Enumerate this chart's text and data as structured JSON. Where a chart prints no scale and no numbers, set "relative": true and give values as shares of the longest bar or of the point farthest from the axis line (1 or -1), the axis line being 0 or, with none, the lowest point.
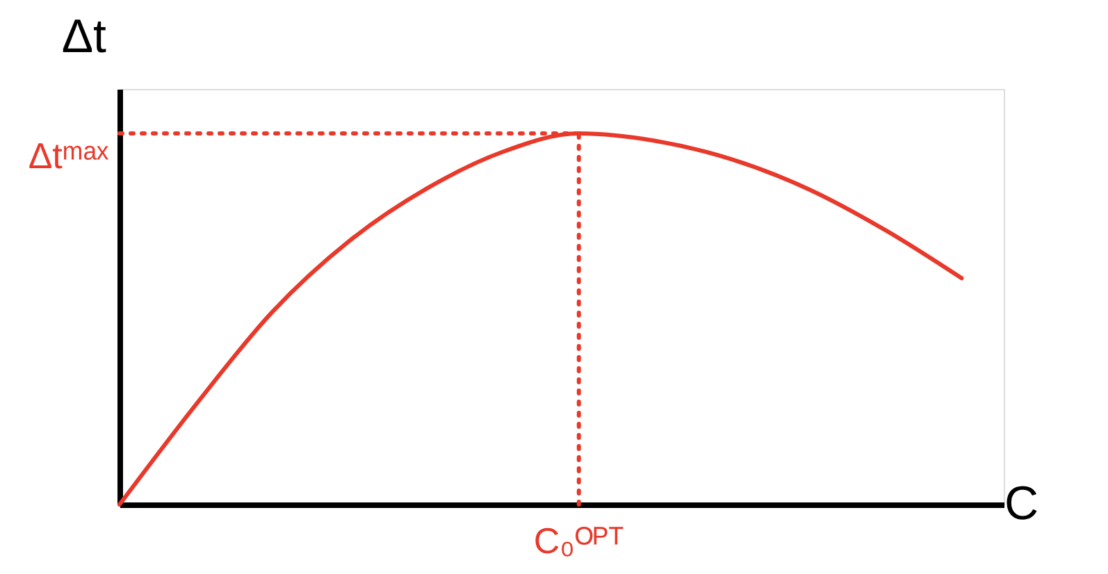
{
  "chart_data": {
    "type": "line",
    "relative": true,
    "xlabel": "C",
    "ylabel": "Δt",
    "categories": [
      null,
      null,
      null,
      null,
      null,
      null,
      null,
      null,
      null,
      null,
      null,
      null
    ],
    "series": [
      {
        "color": "#e8392b",
        "values": [
          0,
          0.27,
          0.52,
          0.71,
          0.85,
          0.95,
          1.0,
          0.98,
          0.93,
          0.85,
          0.74,
          0.61
        ]
      }
    ],
    "ref_lines": [
      {
        "axis": "y",
        "value": 1,
        "label": "Δtᵐᵃˣ",
        "color": "#e8392b",
        "line_style": "dotted"
      }
    ],
    "annotations": [
      {
        "text": "C₀ᴼᴾᵀ",
        "y": 1
      }
    ],
    "grid": false,
    "marker": "none",
    "line_style": "solid"
  }
}
